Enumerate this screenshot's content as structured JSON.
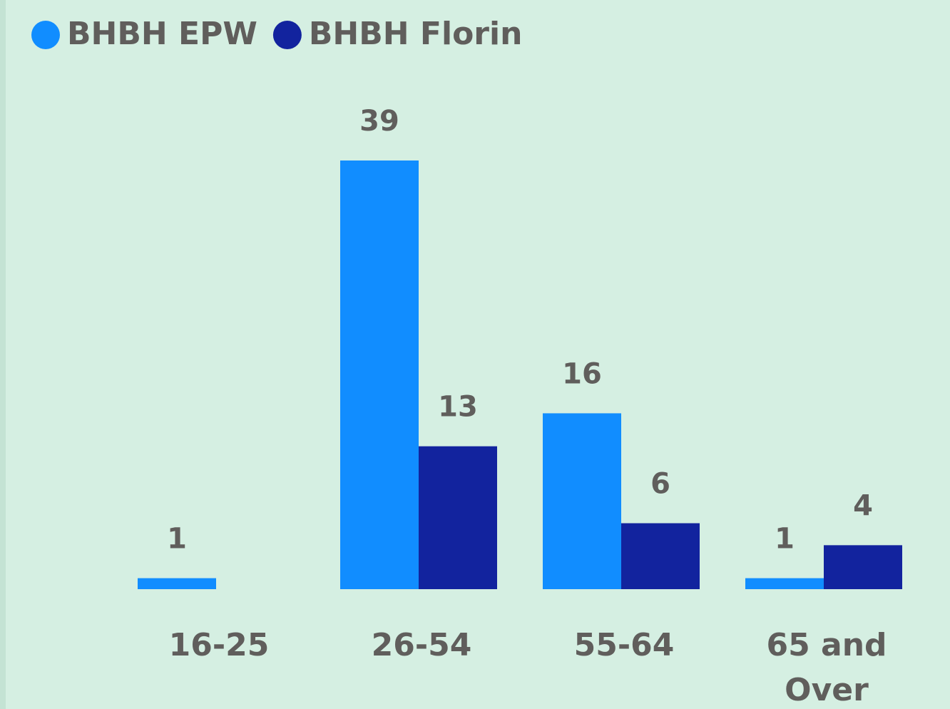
{
  "chart_data": {
    "type": "bar",
    "categories": [
      "16-25",
      "26-54",
      "55-64",
      "65 and Over"
    ],
    "series": [
      {
        "name": "BHBH EPW",
        "color": "#118dff",
        "values": [
          1,
          39,
          16,
          1
        ]
      },
      {
        "name": "BHBH Florin",
        "color": "#12239e",
        "values": [
          null,
          13,
          6,
          4
        ]
      }
    ]
  }
}
